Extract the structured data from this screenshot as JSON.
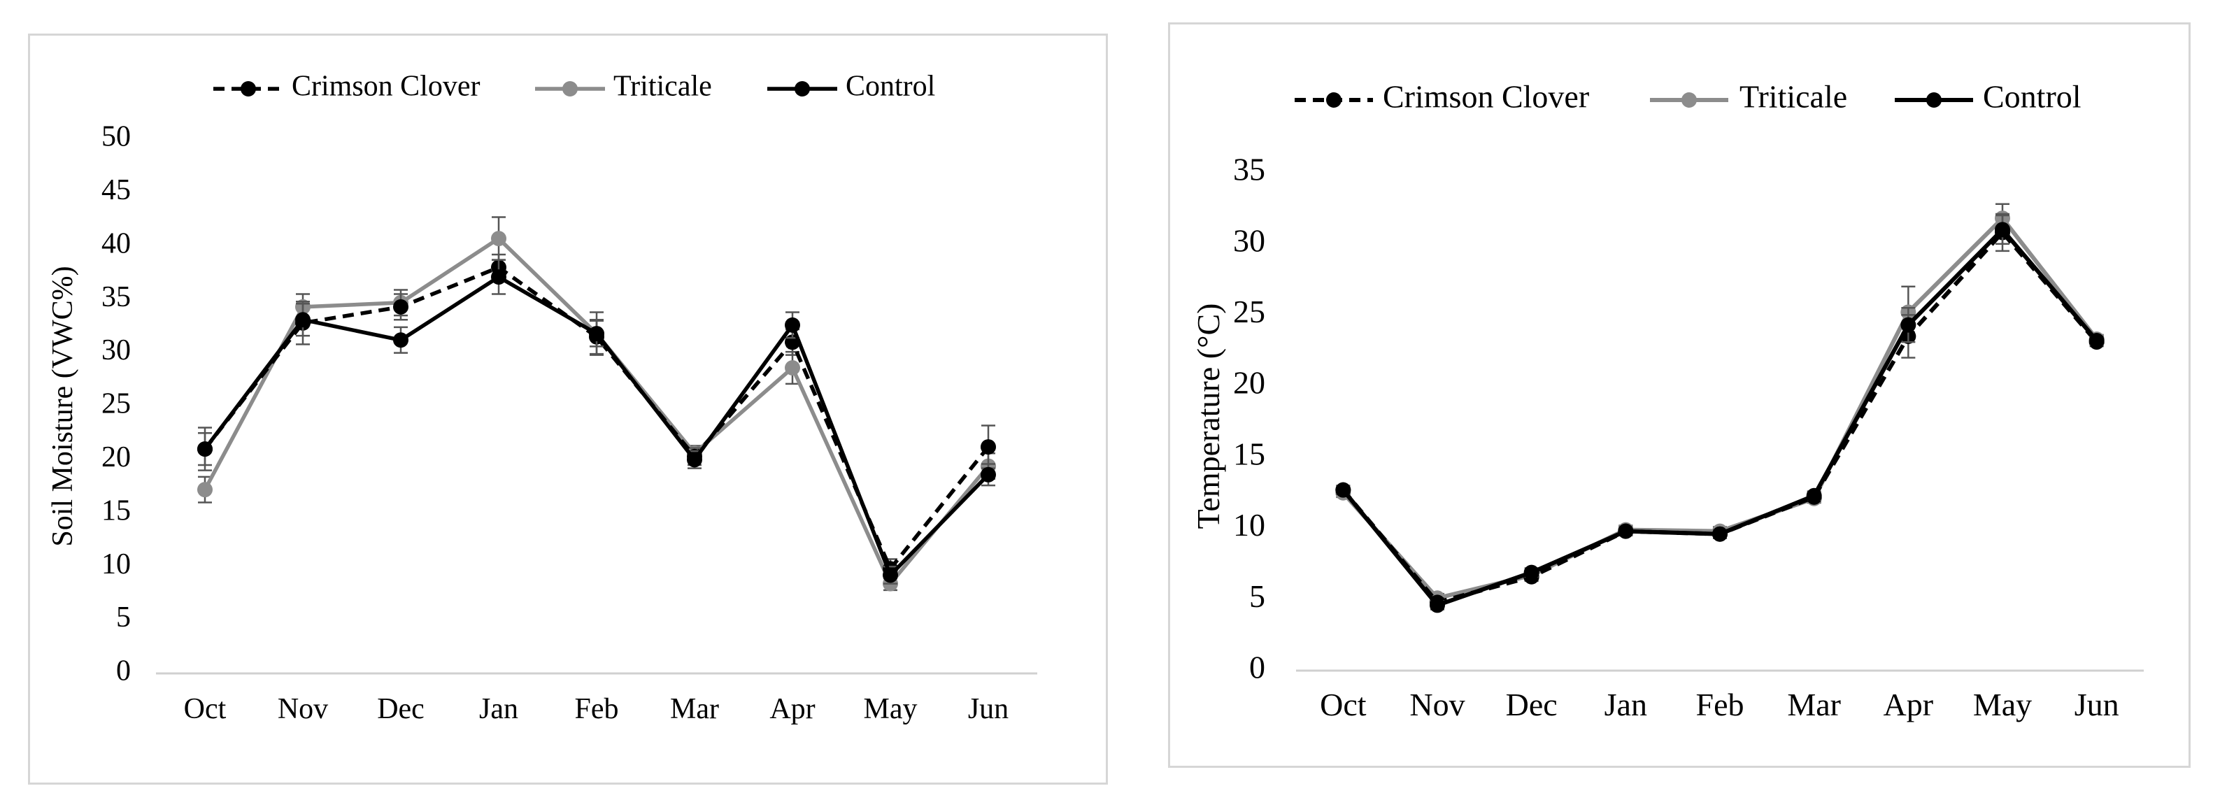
{
  "chart_data": [
    {
      "type": "line",
      "ylabel": "Soil Moisture (VWC%)",
      "xlabel": "",
      "categories": [
        "Oct",
        "Nov",
        "Dec",
        "Jan",
        "Feb",
        "Mar",
        "Apr",
        "May",
        "Jun"
      ],
      "ylim": [
        0,
        50
      ],
      "yticks": [
        0,
        5,
        10,
        15,
        20,
        25,
        30,
        35,
        40,
        45,
        50
      ],
      "legend_position": "top-center",
      "series": [
        {
          "name": "Crimson Clover",
          "style": "dashed",
          "color": "#000000",
          "values": [
            21,
            32.8,
            34.3,
            38,
            31.5,
            20.3,
            31,
            9.8,
            21.2
          ],
          "errors": [
            2,
            2,
            1.2,
            1.2,
            1.6,
            0.8,
            1.2,
            0.9,
            2
          ]
        },
        {
          "name": "Triticale",
          "style": "solid",
          "color": "#8c8c8c",
          "values": [
            17.2,
            34.3,
            34.7,
            40.7,
            31.8,
            20.6,
            28.6,
            8.4,
            19.4
          ],
          "errors": [
            1.2,
            1.2,
            1.2,
            2,
            2,
            0.7,
            1.5,
            0.6,
            1.2
          ]
        },
        {
          "name": "Control",
          "style": "solid",
          "color": "#000000",
          "values": [
            21,
            33.1,
            31.2,
            37.1,
            31.8,
            20,
            32.6,
            9.2,
            18.6
          ],
          "errors": [
            1.5,
            1.5,
            1.2,
            1.6,
            1.2,
            0.8,
            1.2,
            0.8,
            1
          ]
        }
      ]
    },
    {
      "type": "line",
      "ylabel": "Temperature (°C)",
      "xlabel": "",
      "categories": [
        "Oct",
        "Nov",
        "Dec",
        "Jan",
        "Feb",
        "Mar",
        "Apr",
        "May",
        "Jun"
      ],
      "ylim": [
        0,
        35
      ],
      "yticks": [
        0,
        5,
        10,
        15,
        20,
        25,
        30,
        35
      ],
      "legend_position": "top-center",
      "series": [
        {
          "name": "Crimson Clover",
          "style": "dashed",
          "color": "#000000",
          "values": [
            12.7,
            4.8,
            6.6,
            9.8,
            9.6,
            12.2,
            23.5,
            30.8,
            23.1
          ],
          "errors": [
            0.3,
            0.3,
            0.3,
            0.3,
            0.3,
            0.3,
            1.5,
            1.3,
            0.3
          ]
        },
        {
          "name": "Triticale",
          "style": "solid",
          "color": "#8c8c8c",
          "values": [
            12.5,
            5.1,
            6.7,
            9.9,
            9.8,
            12.1,
            25.2,
            31.8,
            23.3
          ],
          "errors": [
            0.3,
            0.3,
            0.3,
            0.3,
            0.3,
            0.3,
            1.8,
            1,
            0.3
          ]
        },
        {
          "name": "Control",
          "style": "solid",
          "color": "#000000",
          "values": [
            12.7,
            4.6,
            6.9,
            9.8,
            9.6,
            12.3,
            24.3,
            31,
            23.2
          ],
          "errors": [
            0.3,
            0.3,
            0.3,
            0.3,
            0.3,
            0.3,
            1.2,
            1,
            0.3
          ]
        }
      ]
    }
  ]
}
